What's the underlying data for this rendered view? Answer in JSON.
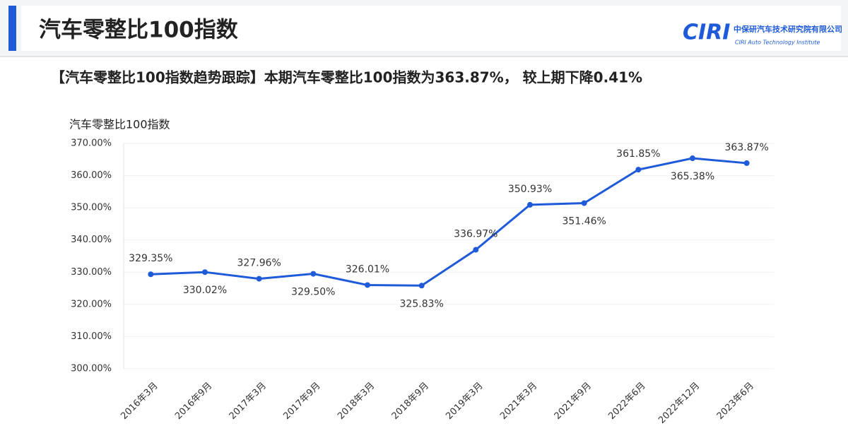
{
  "header": {
    "title": "汽车零整比100指数",
    "logo": "CIRI",
    "org_name": "中保研汽车技术研究院有限公司",
    "org_name_en": "CIRI Auto Technology Institute"
  },
  "chart_data": {
    "type": "line",
    "title": "【汽车零整比100指数趋势跟踪】本期汽车零整比100指数为363.87%， 较上期下降0.41%",
    "y_label": "汽车零整比100指数",
    "categories": [
      "2016年3月",
      "2016年9月",
      "2017年3月",
      "2017年9月",
      "2018年3月",
      "2018年9月",
      "2019年3月",
      "2021年3月",
      "2021年9月",
      "2022年6月",
      "2022年12月",
      "2023年6月"
    ],
    "series": [
      {
        "name": "汽车零整比100指数",
        "color": "#1f5bd8",
        "values": [
          329.35,
          330.02,
          327.96,
          329.5,
          326.01,
          325.83,
          336.97,
          350.93,
          351.46,
          361.85,
          365.38,
          363.87
        ],
        "value_labels": [
          "329.35%",
          "330.02%",
          "327.96%",
          "329.50%",
          "326.01%",
          "325.83%",
          "336.97%",
          "350.93%",
          "351.46%",
          "361.85%",
          "365.38%",
          "363.87%"
        ]
      }
    ],
    "ylim": [
      300,
      370
    ],
    "yticks": [
      {
        "value": 300,
        "label": "300.00%"
      },
      {
        "value": 310,
        "label": "310.00%"
      },
      {
        "value": 320,
        "label": "320.00%"
      },
      {
        "value": 330,
        "label": "330.00%"
      },
      {
        "value": 340,
        "label": "340.00%"
      },
      {
        "value": 350,
        "label": "350.00%"
      },
      {
        "value": 360,
        "label": "360.00%"
      },
      {
        "value": 370,
        "label": "370.00%"
      }
    ],
    "grid": true
  }
}
